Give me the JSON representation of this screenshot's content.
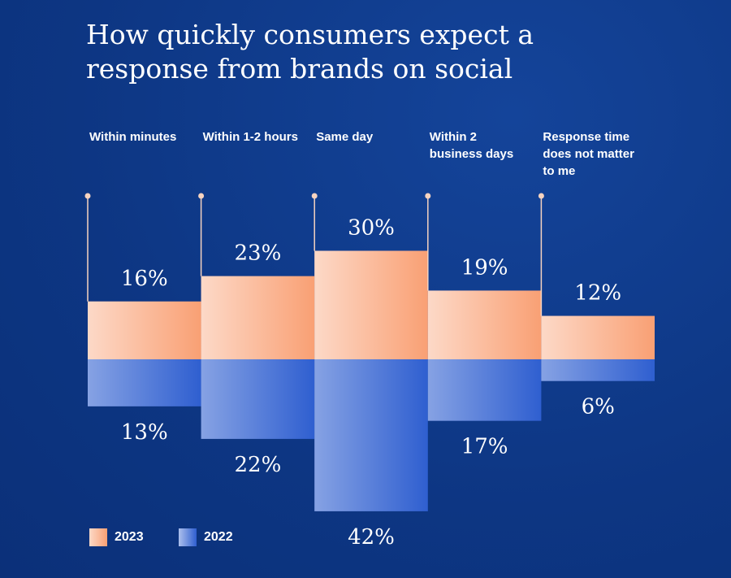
{
  "chart_data": {
    "type": "diverging-bar",
    "title": "How quickly consumers expect a response from brands on social",
    "categories": [
      "Within minutes",
      "Within 1-2 hours",
      "Same day",
      "Within 2 business days",
      "Response time does not matter to me"
    ],
    "series": [
      {
        "name": "2023",
        "color": "#f9a074",
        "values": [
          16,
          23,
          30,
          19,
          12
        ],
        "value_labels": [
          "16%",
          "23%",
          "30%",
          "19%",
          "12%"
        ]
      },
      {
        "name": "2022",
        "color": "#2f5fd0",
        "values": [
          13,
          22,
          42,
          17,
          6
        ],
        "value_labels": [
          "13%",
          "22%",
          "42%",
          "17%",
          "6%"
        ]
      }
    ]
  }
}
